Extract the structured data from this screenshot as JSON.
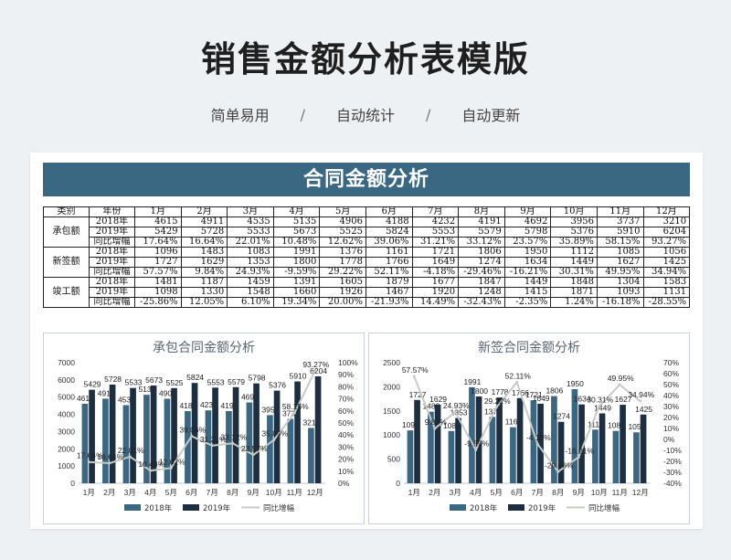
{
  "page": {
    "title": "销售金额分析表模版",
    "taglines": [
      "简单易用",
      "自动统计",
      "自动更新"
    ],
    "separator": "/"
  },
  "sheet": {
    "banner": "合同金额分析",
    "header": [
      "类别",
      "年份",
      "1月",
      "2月",
      "3月",
      "4月",
      "5月",
      "6月",
      "7月",
      "8月",
      "9月",
      "10月",
      "11月",
      "12月"
    ],
    "groups": [
      {
        "category": "承包额",
        "rows": [
          {
            "label": "2018年",
            "values": [
              "4615",
              "4911",
              "4535",
              "5135",
              "4906",
              "4188",
              "4232",
              "4191",
              "4692",
              "3956",
              "3737",
              "3210"
            ]
          },
          {
            "label": "2019年",
            "values": [
              "5429",
              "5728",
              "5533",
              "5673",
              "5525",
              "5824",
              "5553",
              "5579",
              "5798",
              "5376",
              "5910",
              "6204"
            ]
          },
          {
            "label": "同比增幅",
            "values": [
              "17.64%",
              "16.64%",
              "22.01%",
              "10.48%",
              "12.62%",
              "39.06%",
              "31.21%",
              "33.12%",
              "23.57%",
              "35.89%",
              "58.15%",
              "93.27%"
            ]
          }
        ]
      },
      {
        "category": "新签额",
        "rows": [
          {
            "label": "2018年",
            "values": [
              "1096",
              "1483",
              "1083",
              "1991",
              "1376",
              "1161",
              "1721",
              "1806",
              "1950",
              "1112",
              "1085",
              "1056"
            ]
          },
          {
            "label": "2019年",
            "values": [
              "1727",
              "1629",
              "1353",
              "1800",
              "1778",
              "1766",
              "1649",
              "1274",
              "1634",
              "1449",
              "1627",
              "1425"
            ]
          },
          {
            "label": "同比增幅",
            "values": [
              "57.57%",
              "9.84%",
              "24.93%",
              "-9.59%",
              "29.22%",
              "52.11%",
              "-4.18%",
              "-29.46%",
              "-16.21%",
              "30.31%",
              "49.95%",
              "34.94%"
            ]
          }
        ]
      },
      {
        "category": "竣工额",
        "rows": [
          {
            "label": "2018年",
            "values": [
              "1481",
              "1187",
              "1459",
              "1391",
              "1605",
              "1879",
              "1677",
              "1847",
              "1449",
              "1848",
              "1304",
              "1583"
            ]
          },
          {
            "label": "2019年",
            "values": [
              "1098",
              "1330",
              "1548",
              "1660",
              "1926",
              "1467",
              "1920",
              "1248",
              "1415",
              "1871",
              "1093",
              "1131"
            ]
          },
          {
            "label": "同比增幅",
            "values": [
              "-25.86%",
              "12.05%",
              "6.10%",
              "19.34%",
              "20.00%",
              "-21.93%",
              "14.49%",
              "-32.43%",
              "-2.35%",
              "1.24%",
              "-16.18%",
              "-28.55%"
            ]
          }
        ]
      }
    ]
  },
  "chart_data": [
    {
      "type": "bar",
      "title": "承包合同金额分析",
      "categories": [
        "1月",
        "2月",
        "3月",
        "4月",
        "5月",
        "6月",
        "7月",
        "8月",
        "9月",
        "10月",
        "11月",
        "12月"
      ],
      "series": [
        {
          "name": "2018年",
          "axis": "left",
          "kind": "bar",
          "color": "#3a6782",
          "values": [
            4615,
            4911,
            4535,
            5135,
            4906,
            4188,
            4232,
            4191,
            4692,
            3956,
            3737,
            3210
          ]
        },
        {
          "name": "2019年",
          "axis": "left",
          "kind": "bar",
          "color": "#1c2e40",
          "values": [
            5429,
            5728,
            5533,
            5673,
            5525,
            5824,
            5553,
            5579,
            5798,
            5376,
            5910,
            6204
          ]
        },
        {
          "name": "同比增幅",
          "axis": "right",
          "kind": "line",
          "color": "#c6cbc6",
          "values": [
            17.64,
            16.64,
            22.01,
            10.48,
            12.62,
            39.06,
            31.21,
            33.12,
            23.57,
            35.89,
            58.15,
            93.27
          ]
        }
      ],
      "data_labels": {
        "2018年": [
          "4615",
          "4911",
          "4535",
          "5135",
          "4906",
          "4188",
          "4232",
          "4191",
          "4692",
          "3956",
          "3737",
          "3210"
        ],
        "2019年": [
          "5429",
          "5728",
          "5533",
          "5673",
          "5525",
          "5824",
          "5553",
          "5579",
          "5798",
          "5376",
          "5910",
          "6204"
        ],
        "同比增幅": [
          "17.64%",
          "16.64%",
          "22.01%",
          "10.48%",
          "12.62%",
          "39.06%",
          "31.21%",
          "33.12%",
          "23.57%",
          "35.89%",
          "58.15%",
          "93.27%"
        ]
      },
      "ylim": [
        0,
        7000
      ],
      "yticks": [
        "0",
        "1000",
        "2000",
        "3000",
        "4000",
        "5000",
        "6000",
        "7000"
      ],
      "y2lim": [
        0,
        100
      ],
      "y2ticks": [
        "0%",
        "10%",
        "20%",
        "30%",
        "40%",
        "50%",
        "60%",
        "70%",
        "80%",
        "90%",
        "100%"
      ],
      "legend": [
        "2018年",
        "2019年",
        "同比增幅"
      ],
      "legend_position": "bottom",
      "grid": false
    },
    {
      "type": "bar",
      "title": "新签合同金额分析",
      "categories": [
        "1月",
        "2月",
        "3月",
        "4月",
        "5月",
        "6月",
        "7月",
        "8月",
        "9月",
        "10月",
        "11月",
        "12月"
      ],
      "series": [
        {
          "name": "2018年",
          "axis": "left",
          "kind": "bar",
          "color": "#3a6782",
          "values": [
            1096,
            1483,
            1083,
            1991,
            1376,
            1161,
            1721,
            1806,
            1950,
            1112,
            1085,
            1056
          ]
        },
        {
          "name": "2019年",
          "axis": "left",
          "kind": "bar",
          "color": "#1c2e40",
          "values": [
            1727,
            1629,
            1353,
            1800,
            1778,
            1766,
            1649,
            1274,
            1634,
            1449,
            1627,
            1425
          ]
        },
        {
          "name": "同比增幅",
          "axis": "right",
          "kind": "line",
          "color": "#c6cbc6",
          "values": [
            57.57,
            9.84,
            24.93,
            -9.59,
            29.22,
            52.11,
            -4.18,
            -29.46,
            -16.21,
            30.31,
            49.95,
            34.94
          ]
        }
      ],
      "data_labels": {
        "2018年": [
          "1096",
          "1483",
          "1083",
          "1991",
          "1376",
          "1161",
          "1721",
          "1806",
          "1950",
          "1112",
          "1085",
          "1056"
        ],
        "2019年": [
          "1727",
          "1629",
          "1353",
          "1800",
          "1778",
          "1766",
          "1649",
          "1274",
          "1634",
          "1449",
          "1627",
          "1425"
        ],
        "同比增幅": [
          "57.57%",
          "9.84%",
          "24.93%",
          "-9.59%",
          "29.22%",
          "52.11%",
          "-4.18%",
          "-29.46%",
          "-16.21%",
          "30.31%",
          "49.95%",
          "34.94%"
        ]
      },
      "ylim": [
        0,
        2500
      ],
      "yticks": [
        "0",
        "500",
        "1000",
        "1500",
        "2000",
        "2500"
      ],
      "y2lim": [
        -40,
        70
      ],
      "y2ticks": [
        "-40%",
        "-30%",
        "-20%",
        "-10%",
        "0%",
        "10%",
        "20%",
        "30%",
        "40%",
        "50%",
        "60%",
        "70%"
      ],
      "legend": [
        "2018年",
        "2019年",
        "同比增幅"
      ],
      "legend_position": "bottom",
      "grid": false
    }
  ]
}
